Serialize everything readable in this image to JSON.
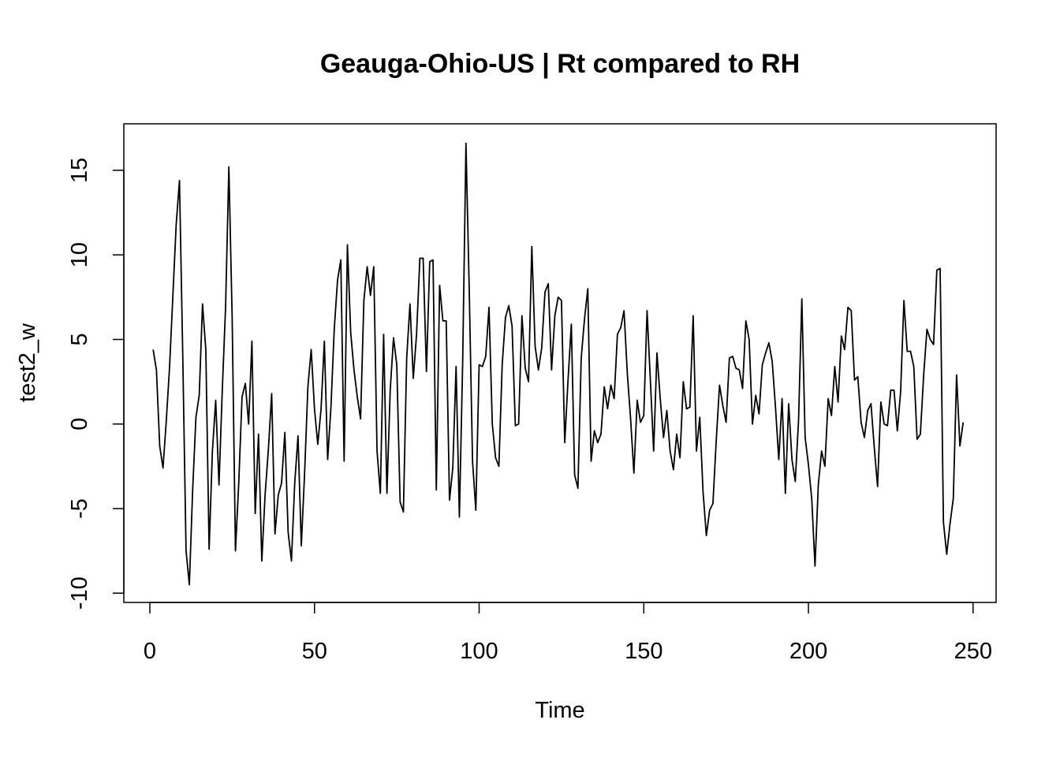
{
  "chart_data": {
    "type": "line",
    "title": "Geauga-Ohio-US | Rt compared to RH",
    "xlabel": "Time",
    "ylabel": "test2_w",
    "xlim": [
      -7.9,
      257
    ],
    "ylim": [
      -10.55,
      17.75
    ],
    "x_ticks": [
      0,
      50,
      100,
      150,
      200,
      250
    ],
    "x_tick_labels": [
      "0",
      "50",
      "100",
      "150",
      "200",
      "250"
    ],
    "y_ticks": [
      -10,
      -5,
      0,
      5,
      10,
      15
    ],
    "y_tick_labels": [
      "-10",
      "-5",
      "0",
      "5",
      "10",
      "15"
    ],
    "grid": false,
    "legend": "none",
    "line_color": "#000000",
    "series": [
      {
        "x_start": 1,
        "x_step": 1,
        "values": [
          4.4,
          3.2,
          -1.3,
          -2.6,
          0.2,
          3.4,
          7.6,
          11.8,
          14.4,
          4.0,
          -7.5,
          -9.5,
          -3.9,
          0.4,
          1.7,
          7.1,
          4.4,
          -7.4,
          -1.6,
          1.4,
          -3.6,
          2.0,
          6.9,
          15.2,
          6.3,
          -7.5,
          -3.5,
          1.6,
          2.4,
          0.0,
          4.9,
          -5.3,
          -0.6,
          -8.1,
          -4.2,
          -1.5,
          1.8,
          -6.5,
          -4.2,
          -3.5,
          -0.5,
          -6.4,
          -8.1,
          -3.5,
          -0.7,
          -7.2,
          -2.9,
          2.2,
          4.4,
          0.9,
          -1.2,
          0.9,
          4.9,
          -2.1,
          1.0,
          5.6,
          8.5,
          9.7,
          -2.2,
          10.6,
          5.4,
          3.2,
          1.6,
          0.3,
          7.3,
          9.3,
          7.6,
          9.3,
          -1.6,
          -4.1,
          5.3,
          -4.1,
          2.0,
          5.1,
          3.5,
          -4.6,
          -5.2,
          3.9,
          7.1,
          2.7,
          5.3,
          9.8,
          9.8,
          3.1,
          9.6,
          9.7,
          -3.9,
          8.2,
          6.1,
          6.1,
          -4.5,
          -2.6,
          3.4,
          -5.5,
          3.6,
          16.6,
          7.9,
          -2.2,
          -5.1,
          3.5,
          3.4,
          4.0,
          6.9,
          0.0,
          -2.0,
          -2.5,
          3.5,
          6.3,
          7.0,
          5.8,
          -0.1,
          0.0,
          6.4,
          3.3,
          2.5,
          10.5,
          4.6,
          3.2,
          4.5,
          7.8,
          8.3,
          3.2,
          6.4,
          7.5,
          7.3,
          -1.1,
          2.6,
          5.9,
          -3.0,
          -3.8,
          3.9,
          6.2,
          8.0,
          -2.2,
          -0.4,
          -1.1,
          -0.6,
          2.2,
          0.9,
          2.3,
          1.5,
          5.3,
          5.7,
          6.7,
          3.0,
          0.3,
          -2.9,
          1.4,
          0.1,
          0.5,
          6.7,
          2.6,
          -1.6,
          4.2,
          1.5,
          -0.8,
          0.8,
          -1.6,
          -2.7,
          -0.6,
          -2.0,
          2.5,
          0.9,
          1.0,
          6.4,
          -1.6,
          0.4,
          -4.0,
          -6.6,
          -5.1,
          -4.7,
          -1.0,
          2.3,
          1.1,
          0.1,
          3.9,
          4.0,
          3.3,
          3.2,
          2.1,
          6.1,
          5.0,
          0.0,
          1.7,
          0.6,
          3.5,
          4.2,
          4.8,
          3.7,
          1.0,
          -2.1,
          1.5,
          -4.1,
          1.2,
          -2.1,
          -3.4,
          0.2,
          7.4,
          -0.8,
          -2.4,
          -4.4,
          -8.4,
          -3.6,
          -1.6,
          -2.5,
          1.5,
          0.5,
          3.4,
          1.3,
          5.2,
          4.4,
          6.9,
          6.7,
          2.6,
          2.8,
          0.1,
          -0.8,
          0.8,
          1.2,
          -1.4,
          -3.7,
          1.3,
          0.0,
          -0.1,
          2.0,
          2.0,
          -0.4,
          1.9,
          7.3,
          4.3,
          4.3,
          3.4,
          -0.9,
          -0.6,
          2.9,
          5.6,
          5.0,
          4.7,
          9.1,
          9.2,
          -5.8,
          -7.7,
          -5.9,
          -4.4,
          2.9,
          -1.3,
          0.1
        ]
      }
    ]
  }
}
